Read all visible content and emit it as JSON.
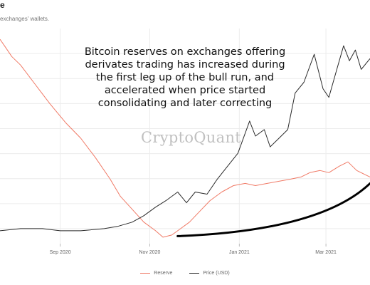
{
  "title": "e",
  "subtitle": "exchanges' wallets.",
  "annotation": {
    "lines": [
      "Bitcoin reserves on exchanges offering",
      "derivates trading has increased during",
      "the first leg up of the bull run, and",
      "accelerated when price started",
      "consolidating and later correcting"
    ]
  },
  "watermark": "CryptoQuant",
  "colors": {
    "reserve": "#f07a66",
    "price": "#2a2a2a",
    "trend": "#000000",
    "grid": "#ececec"
  },
  "chart_data": {
    "type": "line",
    "x_ticks": [
      "Sep 2020",
      "Nov 2020",
      "Jan 2021",
      "Mar 2021"
    ],
    "x_tick_dates": [
      "2020-09-01",
      "2020-11-01",
      "2021-01-01",
      "2021-03-01"
    ],
    "x_range": [
      "2020-07-22",
      "2021-03-31"
    ],
    "grid": true,
    "legend_position": "bottom",
    "series": [
      {
        "name": "Reserve",
        "key": "reserve",
        "points": [
          [
            "2020-07-22",
            0.05
          ],
          [
            "2020-07-26",
            0.09
          ],
          [
            "2020-07-30",
            0.13
          ],
          [
            "2020-08-05",
            0.17
          ],
          [
            "2020-08-15",
            0.26
          ],
          [
            "2020-08-25",
            0.35
          ],
          [
            "2020-09-05",
            0.44
          ],
          [
            "2020-09-15",
            0.51
          ],
          [
            "2020-09-25",
            0.6
          ],
          [
            "2020-10-05",
            0.7
          ],
          [
            "2020-10-12",
            0.78
          ],
          [
            "2020-10-20",
            0.84
          ],
          [
            "2020-10-28",
            0.9
          ],
          [
            "2020-11-05",
            0.94
          ],
          [
            "2020-11-10",
            0.97
          ],
          [
            "2020-11-16",
            0.96
          ],
          [
            "2020-11-22",
            0.93
          ],
          [
            "2020-11-28",
            0.9
          ],
          [
            "2020-12-05",
            0.85
          ],
          [
            "2020-12-12",
            0.8
          ],
          [
            "2020-12-20",
            0.76
          ],
          [
            "2020-12-28",
            0.73
          ],
          [
            "2021-01-05",
            0.72
          ],
          [
            "2021-01-12",
            0.73
          ],
          [
            "2021-01-20",
            0.72
          ],
          [
            "2021-01-28",
            0.71
          ],
          [
            "2021-02-05",
            0.7
          ],
          [
            "2021-02-12",
            0.69
          ],
          [
            "2021-02-18",
            0.67
          ],
          [
            "2021-02-25",
            0.66
          ],
          [
            "2021-03-03",
            0.67
          ],
          [
            "2021-03-10",
            0.64
          ],
          [
            "2021-03-16",
            0.62
          ],
          [
            "2021-03-22",
            0.66
          ],
          [
            "2021-03-28",
            0.68
          ],
          [
            "2021-03-31",
            0.69
          ]
        ]
      },
      {
        "name": "Price (USD)",
        "key": "price",
        "points": [
          [
            "2020-07-22",
            0.94
          ],
          [
            "2020-08-05",
            0.93
          ],
          [
            "2020-08-20",
            0.93
          ],
          [
            "2020-09-01",
            0.94
          ],
          [
            "2020-09-15",
            0.94
          ],
          [
            "2020-10-01",
            0.93
          ],
          [
            "2020-10-10",
            0.92
          ],
          [
            "2020-10-20",
            0.9
          ],
          [
            "2020-10-28",
            0.87
          ],
          [
            "2020-11-05",
            0.83
          ],
          [
            "2020-11-12",
            0.8
          ],
          [
            "2020-11-20",
            0.76
          ],
          [
            "2020-11-26",
            0.81
          ],
          [
            "2020-12-02",
            0.76
          ],
          [
            "2020-12-10",
            0.77
          ],
          [
            "2020-12-17",
            0.7
          ],
          [
            "2020-12-24",
            0.64
          ],
          [
            "2020-12-31",
            0.58
          ],
          [
            "2021-01-08",
            0.43
          ],
          [
            "2021-01-12",
            0.5
          ],
          [
            "2021-01-18",
            0.47
          ],
          [
            "2021-01-22",
            0.55
          ],
          [
            "2021-01-28",
            0.51
          ],
          [
            "2021-02-03",
            0.47
          ],
          [
            "2021-02-08",
            0.3
          ],
          [
            "2021-02-14",
            0.25
          ],
          [
            "2021-02-21",
            0.12
          ],
          [
            "2021-02-27",
            0.28
          ],
          [
            "2021-03-03",
            0.32
          ],
          [
            "2021-03-08",
            0.2
          ],
          [
            "2021-03-13",
            0.08
          ],
          [
            "2021-03-17",
            0.15
          ],
          [
            "2021-03-21",
            0.1
          ],
          [
            "2021-03-25",
            0.19
          ],
          [
            "2021-03-31",
            0.14
          ]
        ]
      }
    ],
    "trend_arrow": {
      "from": [
        "2020-11-20",
        0.965
      ],
      "control": [
        "2021-02-25",
        0.94
      ],
      "to": [
        "2021-03-31",
        0.72
      ]
    }
  }
}
